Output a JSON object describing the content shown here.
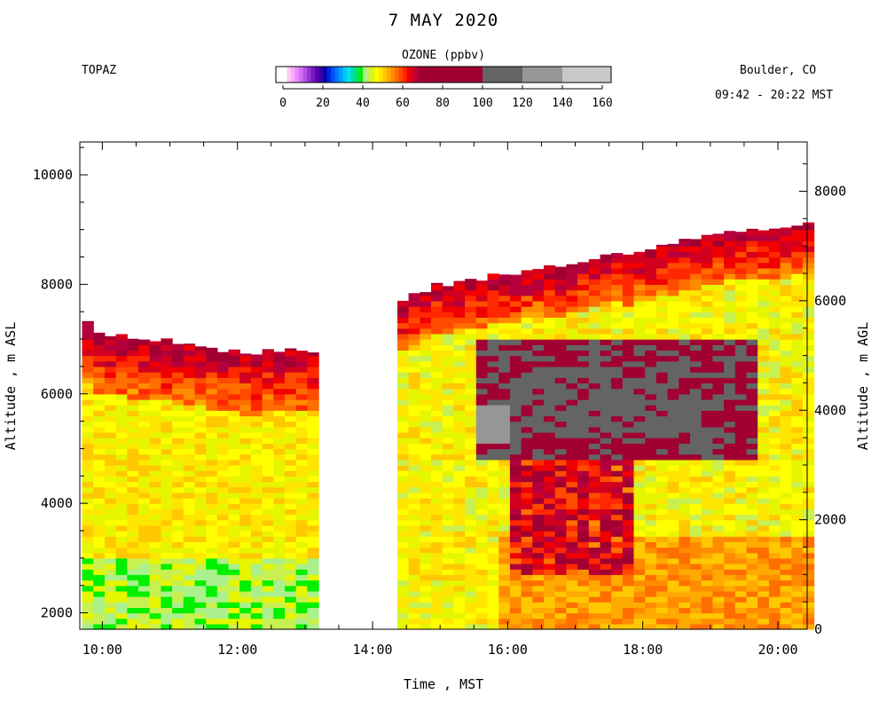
{
  "header": {
    "title": "7 MAY 2020",
    "instrument": "TOPAZ",
    "location": "Boulder, CO",
    "time_range": "09:42 - 20:22 MST"
  },
  "colorbar": {
    "title": "OZONE (ppbv)",
    "ticks": [
      0,
      20,
      40,
      60,
      80,
      100,
      120,
      140,
      160
    ],
    "bins": [
      {
        "from": 0,
        "to": 2,
        "color": "#ffffff"
      },
      {
        "from": 2,
        "to": 4,
        "color": "#ffc8f0"
      },
      {
        "from": 4,
        "to": 6,
        "color": "#ffa8ff"
      },
      {
        "from": 6,
        "to": 8,
        "color": "#e888ff"
      },
      {
        "from": 8,
        "to": 10,
        "color": "#d070f0"
      },
      {
        "from": 10,
        "to": 12,
        "color": "#b450e6"
      },
      {
        "from": 12,
        "to": 14,
        "color": "#9632d2"
      },
      {
        "from": 14,
        "to": 16,
        "color": "#7818c0"
      },
      {
        "from": 16,
        "to": 18,
        "color": "#5a00b4"
      },
      {
        "from": 18,
        "to": 20,
        "color": "#3c00a0"
      },
      {
        "from": 20,
        "to": 22,
        "color": "#0000b4"
      },
      {
        "from": 22,
        "to": 24,
        "color": "#0028d2"
      },
      {
        "from": 24,
        "to": 26,
        "color": "#0050ff"
      },
      {
        "from": 26,
        "to": 28,
        "color": "#0078ff"
      },
      {
        "from": 28,
        "to": 30,
        "color": "#00a0ff"
      },
      {
        "from": 30,
        "to": 32,
        "color": "#00c8ff"
      },
      {
        "from": 32,
        "to": 34,
        "color": "#00e6e6"
      },
      {
        "from": 34,
        "to": 36,
        "color": "#00dca0"
      },
      {
        "from": 36,
        "to": 38,
        "color": "#00e664"
      },
      {
        "from": 38,
        "to": 40,
        "color": "#00f000"
      },
      {
        "from": 40,
        "to": 42,
        "color": "#aaf08c"
      },
      {
        "from": 42,
        "to": 44,
        "color": "#c8f050"
      },
      {
        "from": 44,
        "to": 46,
        "color": "#e6f500"
      },
      {
        "from": 46,
        "to": 48,
        "color": "#ffff00"
      },
      {
        "from": 48,
        "to": 50,
        "color": "#ffe600"
      },
      {
        "from": 50,
        "to": 52,
        "color": "#ffc800"
      },
      {
        "from": 52,
        "to": 54,
        "color": "#ffaa00"
      },
      {
        "from": 54,
        "to": 56,
        "color": "#ff8c00"
      },
      {
        "from": 56,
        "to": 58,
        "color": "#ff6e00"
      },
      {
        "from": 58,
        "to": 60,
        "color": "#ff4b00"
      },
      {
        "from": 60,
        "to": 62,
        "color": "#ff2800"
      },
      {
        "from": 62,
        "to": 64,
        "color": "#f00000"
      },
      {
        "from": 64,
        "to": 66,
        "color": "#d2001e"
      },
      {
        "from": 66,
        "to": 68,
        "color": "#b4003c"
      },
      {
        "from": 68,
        "to": 100,
        "color": "#a00032"
      },
      {
        "from": 100,
        "to": 120,
        "color": "#646464"
      },
      {
        "from": 120,
        "to": 140,
        "color": "#969696"
      },
      {
        "from": 140,
        "to": 160,
        "color": "#c8c8c8"
      }
    ]
  },
  "chart_data": {
    "type": "heatmap",
    "title": "7 MAY 2020",
    "variable": "OZONE (ppbv)",
    "xlabel": "Time , MST",
    "ylabel_left": "Altitude , m ASL",
    "ylabel_right": "Altitude , m AGL",
    "x_tick_labels": [
      "10:00",
      "12:00",
      "14:00",
      "16:00",
      "18:00",
      "20:00"
    ],
    "y_ticks_left": [
      2000,
      4000,
      6000,
      8000,
      10000
    ],
    "y_ticks_right": [
      0,
      2000,
      4000,
      6000,
      8000
    ],
    "xlim_hours": [
      9.667,
      20.433
    ],
    "ylim_m_asl": [
      1700,
      10600
    ],
    "surface_altitude_m_asl": 1700,
    "cell_minutes": 10,
    "cell_height_m": 100,
    "data_gap_hours": [
      13.35,
      14.35
    ],
    "top_altitude_m_asl": [
      [
        9.7,
        7400
      ],
      [
        10.0,
        7100
      ],
      [
        11.0,
        6950
      ],
      [
        12.0,
        6750
      ],
      [
        13.3,
        6800
      ],
      [
        14.4,
        7700
      ],
      [
        15.0,
        8000
      ],
      [
        16.0,
        8200
      ],
      [
        17.0,
        8400
      ],
      [
        18.0,
        8600
      ],
      [
        19.0,
        8900
      ],
      [
        20.4,
        9100
      ]
    ],
    "ozone_features": [
      {
        "name": "background_lower",
        "hours": [
          9.7,
          13.35
        ],
        "altitude_m_asl": [
          1700,
          6000
        ],
        "ozone_ppbv": 48
      },
      {
        "name": "near_surface_low",
        "hours": [
          9.7,
          13.35
        ],
        "altitude_m_asl": [
          1700,
          3000
        ],
        "ozone_ppbv": 42
      },
      {
        "name": "upper_red_band",
        "hours": [
          9.7,
          13.35
        ],
        "altitude_m_asl": [
          6000,
          7100
        ],
        "ozone_ppbv": 62
      },
      {
        "name": "afternoon_boundary_layer",
        "hours": [
          15.9,
          20.4
        ],
        "altitude_m_asl": [
          1700,
          3500
        ],
        "ozone_ppbv": 54
      },
      {
        "name": "intrusion_core",
        "hours": [
          15.6,
          19.7
        ],
        "altitude_m_asl": [
          4800,
          7000
        ],
        "ozone_ppbv": 110
      },
      {
        "name": "intrusion_peak",
        "hours": [
          15.6,
          16.0
        ],
        "altitude_m_asl": [
          5100,
          5800
        ],
        "ozone_ppbv": 125
      },
      {
        "name": "descending_tongue",
        "hours": [
          16.0,
          17.9
        ],
        "altitude_m_asl": [
          2700,
          6000
        ],
        "ozone_ppbv": 75
      }
    ]
  }
}
